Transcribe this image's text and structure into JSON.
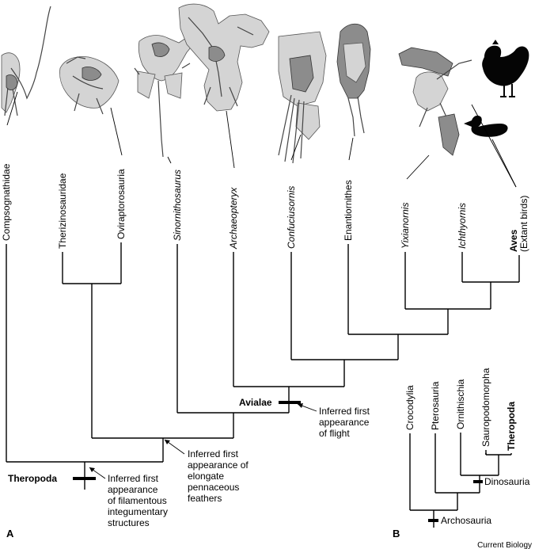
{
  "panel_a": {
    "letter": "A",
    "taxa": [
      {
        "label": "Compsognathidae",
        "italic": false,
        "bold": false
      },
      {
        "label": "Therizinosauridae",
        "italic": false,
        "bold": false
      },
      {
        "label": "Oviraptorosauria",
        "italic": false,
        "bold": false
      },
      {
        "label": "Sinornithosaurus",
        "italic": true,
        "bold": false
      },
      {
        "label": "Archaeopteryx",
        "italic": true,
        "bold": false
      },
      {
        "label": "Confuciusornis",
        "italic": true,
        "bold": false
      },
      {
        "label": "Enantiornithes",
        "italic": false,
        "bold": false
      },
      {
        "label": "Yixianornis",
        "italic": true,
        "bold": false
      },
      {
        "label": "Ichthyornis",
        "italic": true,
        "bold": false
      },
      {
        "label": "Aves",
        "italic": false,
        "bold": true,
        "sublabel": "(Extant birds)"
      }
    ],
    "clades": {
      "theropoda": "Theropoda",
      "avialae": "Avialae"
    },
    "annotations": {
      "filaments": [
        "Inferred first",
        "appearance",
        "of filamentous",
        "integumentary",
        "structures"
      ],
      "feathers": [
        "Inferred first",
        "appearance of",
        "elongate",
        "pennaceous",
        "feathers"
      ],
      "flight": [
        "Inferred first",
        "appearance",
        "of flight"
      ]
    },
    "images": [
      "compsognathid-fossil",
      "oviraptorosaur-fossil",
      "sinornithosaurus-fossil",
      "archaeopteryx-fossil",
      "confuciusornis-fossil",
      "enantiornithine-fossil",
      "yixianornis-fossil",
      "chicken-silhouette",
      "duck-silhouette"
    ]
  },
  "panel_b": {
    "letter": "B",
    "taxa": [
      {
        "label": "Crocodylia",
        "bold": false
      },
      {
        "label": "Pterosauria",
        "bold": false
      },
      {
        "label": "Ornithischia",
        "bold": false
      },
      {
        "label": "Sauropodomorpha",
        "bold": false
      },
      {
        "label": "Theropoda",
        "bold": true
      }
    ],
    "clades": {
      "dinosauria": "Dinosauria",
      "archosauria": "Archosauria"
    }
  },
  "credit": "Current Biology",
  "colors": {
    "line": "#000000",
    "fossil_light": "#d4d4d4",
    "fossil_dark": "#8c8c8c",
    "silhouette": "#050505",
    "background": "#ffffff"
  }
}
